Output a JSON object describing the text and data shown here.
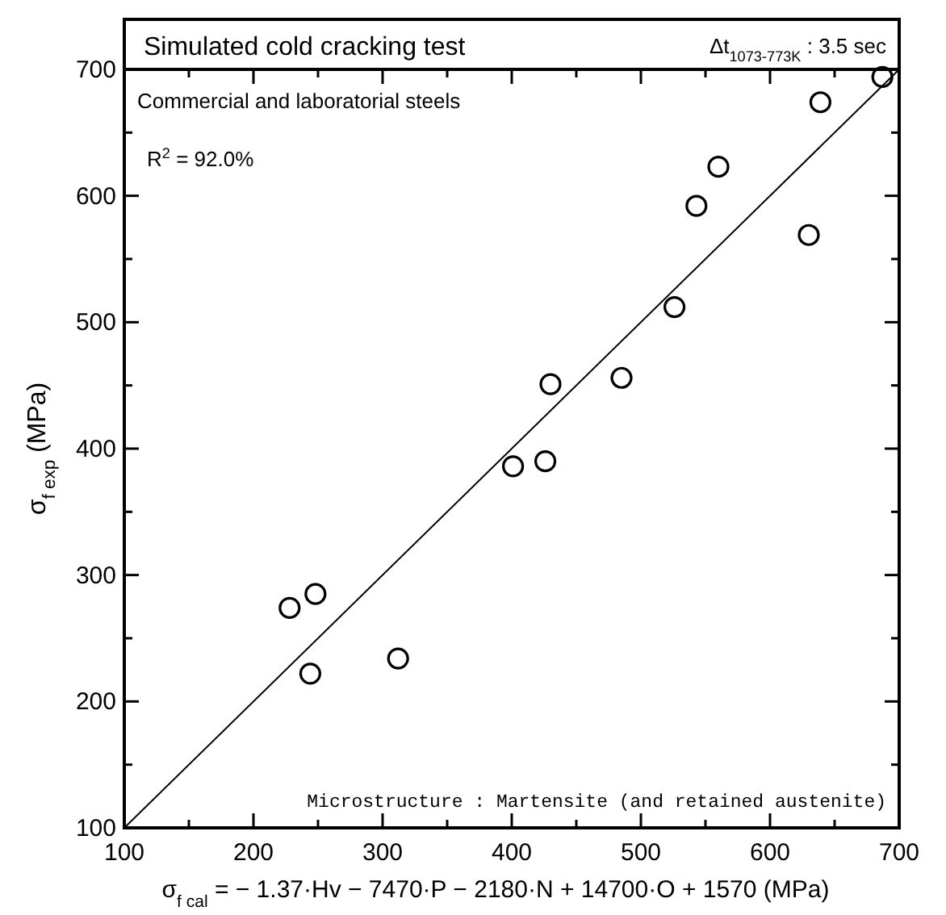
{
  "chart_data": {
    "type": "scatter",
    "title": "Simulated cold cracking test",
    "subtitle": "Δt$_{1073-773K}$ : 3.5 sec",
    "xlabel": "σ$_{f cal}$ = − 1.37·Hv − 7470·P − 2180·N + 14700·O + 1570  (MPa)",
    "ylabel": "σ$_{f exp}$ (MPa)",
    "annotations": [
      "Commercial and laboratorial steels",
      "R$^{2}$ = 92.0%",
      "Microstructure : Martensite (and retained austenite)"
    ],
    "xlim": [
      100,
      700
    ],
    "ylim": [
      100,
      700
    ],
    "xticks": [
      100,
      {
        "value": 150,
        "label": null
      },
      200,
      {
        "value": 250,
        "label": null
      },
      300,
      {
        "value": 350,
        "label": null
      },
      400,
      {
        "value": 450,
        "label": null
      },
      500,
      {
        "value": 550,
        "label": null
      },
      600,
      {
        "value": 650,
        "label": null
      },
      700
    ],
    "yticks": [
      100,
      {
        "value": 150,
        "label": null
      },
      200,
      {
        "value": 250,
        "label": null
      },
      300,
      {
        "value": 350,
        "label": null
      },
      400,
      {
        "value": 450,
        "label": null
      },
      500,
      {
        "value": 550,
        "label": null
      },
      600,
      {
        "value": 650,
        "label": null
      },
      700
    ],
    "grid": false,
    "series": [
      {
        "color": "#000000",
        "marker": "circle",
        "x": [
          228,
          248,
          244,
          312,
          401,
          426,
          430,
          485,
          526,
          543,
          560,
          630,
          639,
          687
        ],
        "values": [
          274,
          285,
          222,
          234,
          386,
          390,
          451,
          456,
          512,
          592,
          623,
          569,
          674,
          694
        ]
      },
      {
        "type": "line",
        "color": "#000000",
        "marker": "none",
        "line_style": "solid",
        "x": [
          100,
          700
        ],
        "values": [
          100,
          700
        ]
      }
    ]
  }
}
